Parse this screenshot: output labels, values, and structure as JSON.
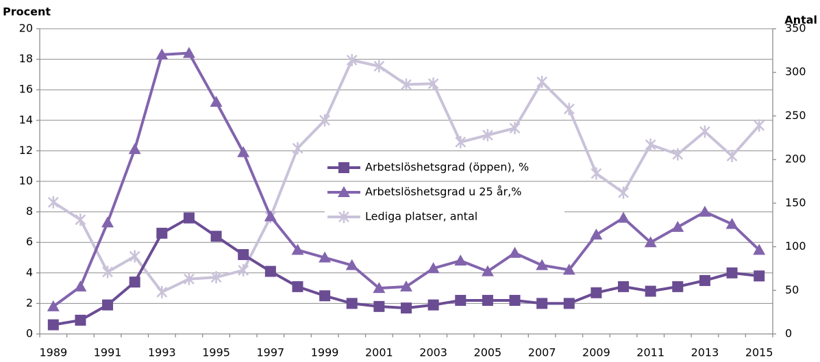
{
  "chart_data": {
    "type": "line",
    "y_label": "Procent",
    "y2_label": "Antal",
    "categories": [
      "1989",
      null,
      "1991",
      null,
      "1993",
      null,
      "1995",
      null,
      "1997",
      null,
      "1999",
      null,
      "2001",
      null,
      "2003",
      null,
      "2005",
      null,
      "2007",
      null,
      "2009",
      null,
      "2011",
      null,
      "2013",
      null,
      "2015"
    ],
    "series": [
      {
        "name": "Arbetslöshetsgrad (öppen), %",
        "color": "#6a4c93",
        "marker": "square",
        "values": [
          0.6,
          0.9,
          1.9,
          3.4,
          6.6,
          7.6,
          6.4,
          5.2,
          4.1,
          3.1,
          2.5,
          2.0,
          1.8,
          1.7,
          1.9,
          2.2,
          2.2,
          2.2,
          2.0,
          2.0,
          2.7,
          3.1,
          2.8,
          3.1,
          3.5,
          4.0,
          3.8
        ]
      },
      {
        "name": "Arbetslöshetsgrad u 25 år,%",
        "color": "#8264ad",
        "marker": "triangle",
        "values": [
          1.8,
          3.1,
          7.3,
          12.1,
          18.3,
          18.4,
          15.2,
          11.9,
          7.7,
          5.5,
          5.0,
          4.5,
          3.0,
          3.1,
          4.3,
          4.8,
          4.1,
          5.3,
          4.5,
          4.2,
          6.5,
          7.6,
          6.0,
          7.0,
          8.0,
          7.2,
          5.5
        ]
      },
      {
        "name": "Lediga platser, antal",
        "color": "#c9c2d9",
        "marker": "star",
        "axis": "y2",
        "values": [
          151,
          131,
          71,
          89,
          48,
          63,
          65,
          73,
          134,
          213,
          245,
          314,
          307,
          286,
          287,
          220,
          228,
          236,
          289,
          258,
          184,
          162,
          217,
          206,
          232,
          204,
          239
        ]
      }
    ],
    "ylim": [
      0,
      20
    ],
    "yticks": [
      0,
      2,
      4,
      6,
      8,
      10,
      12,
      14,
      16,
      18,
      20
    ],
    "y2lim": [
      0,
      350
    ],
    "y2ticks": [
      0,
      50,
      100,
      150,
      200,
      250,
      300,
      350
    ],
    "grid": true,
    "legend": "center"
  }
}
